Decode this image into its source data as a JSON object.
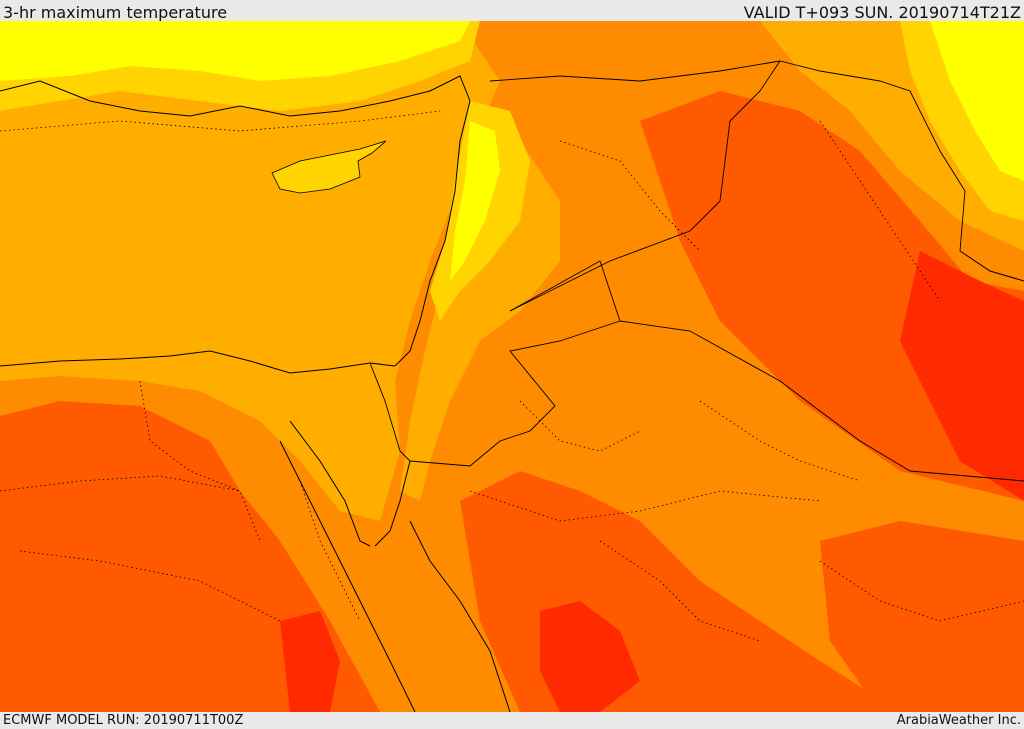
{
  "header": {
    "title": "3-hr maximum temperature",
    "valid": "VALID T+093 SUN. 20190714T21Z"
  },
  "footer": {
    "model_run": "ECMWF MODEL RUN: 20190711T00Z",
    "credit": "ArabiaWeather Inc."
  },
  "palette": {
    "cool": "#ffff00",
    "mild": "#ffd400",
    "warm": "#ffae00",
    "hot": "#ff8c00",
    "very_hot": "#ff5a00",
    "extreme": "#ff2a00",
    "border": "#000000"
  }
}
